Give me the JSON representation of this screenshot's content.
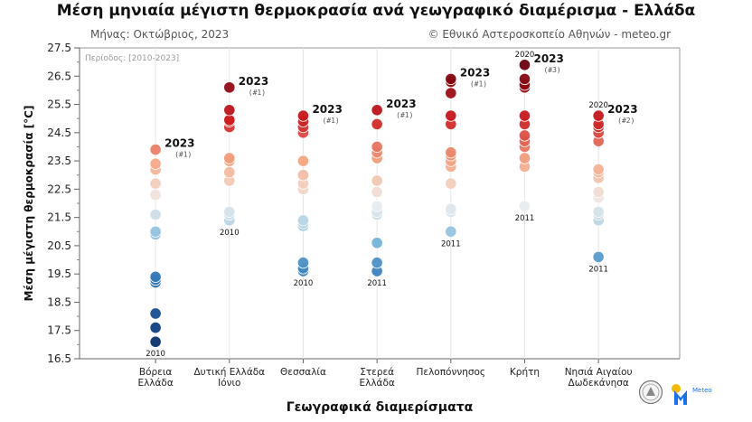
{
  "title": "Μέση μηνιαία μέγιστη θερμοκρασία ανά γεωγραφικό διαμέρισμα - Ελλάδα",
  "subtitle_left": "Μήνας: Οκτώβριος, 2023",
  "subtitle_right": "© Εθνικό Αστεροσκοπείο Αθηνών - meteo.gr",
  "logo_text": "Meteo",
  "chart_data": {
    "type": "scatter",
    "title": "Μέση μηνιαία μέγιστη θερμοκρασία ανά γεωγραφικό διαμέρισμα - Ελλάδα",
    "period_label": "Περίοδος: [2010-2023]",
    "xlabel": "Γεωγραφικά διαμερίσματα",
    "ylabel": "Μέση μέγιστη θερμοκρασία [°C]",
    "ylim": [
      16.5,
      27.5
    ],
    "yticks": [
      "16.5",
      "17.5",
      "18.5",
      "19.5",
      "20.5",
      "21.5",
      "22.5",
      "23.5",
      "24.5",
      "25.5",
      "26.5",
      "27.5"
    ],
    "grid": "vertical",
    "colors": {
      "cold": "#08306b",
      "warm": "#67000d"
    },
    "categories": [
      {
        "lines": [
          "Βόρεια",
          "Ελλάδα"
        ],
        "values": [
          17.1,
          17.6,
          18.1,
          19.2,
          19.3,
          19.4,
          20.9,
          21.0,
          21.6,
          22.3,
          22.7,
          23.2,
          23.4,
          23.9
        ],
        "max_label": "2023",
        "max_rank": "(#1)",
        "min_label": "2010",
        "top_label": ""
      },
      {
        "lines": [
          "Δυτική Ελλάδα",
          "Ιόνιο"
        ],
        "values": [
          21.4,
          21.6,
          21.7,
          22.8,
          23.1,
          23.5,
          23.6,
          24.7,
          24.9,
          24.95,
          25.3,
          26.1
        ],
        "max_label": "2023",
        "max_rank": "(#1)",
        "min_label": "2010",
        "top_label": ""
      },
      {
        "lines": [
          "Θεσσαλία"
        ],
        "values": [
          19.6,
          19.7,
          19.9,
          21.2,
          21.3,
          21.4,
          22.5,
          22.7,
          23.0,
          23.5,
          24.5,
          24.7,
          24.9,
          25.1
        ],
        "max_label": "2023",
        "max_rank": "(#1)",
        "min_label": "2010",
        "top_label": ""
      },
      {
        "lines": [
          "Στερεά",
          "Ελλάδα"
        ],
        "values": [
          19.6,
          19.9,
          20.6,
          21.6,
          21.7,
          21.9,
          22.4,
          22.8,
          23.6,
          23.8,
          24.0,
          24.8,
          25.3
        ],
        "max_label": "2023",
        "max_rank": "(#1)",
        "min_label": "2011",
        "top_label": ""
      },
      {
        "lines": [
          "Πελοπόννησος"
        ],
        "values": [
          21.0,
          21.7,
          21.8,
          22.7,
          23.3,
          23.5,
          23.7,
          23.8,
          24.8,
          25.1,
          25.9,
          26.3,
          26.4
        ],
        "max_label": "2023",
        "max_rank": "(#1)",
        "min_label": "2011",
        "top_label": ""
      },
      {
        "lines": [
          "Κρήτη"
        ],
        "values": [
          21.9,
          23.3,
          23.6,
          24.0,
          24.2,
          24.4,
          24.8,
          25.1,
          26.1,
          26.2,
          26.4,
          26.9
        ],
        "max_label": "2023",
        "max_rank": "(#3)",
        "min_label": "2011",
        "top_label": "2020"
      },
      {
        "lines": [
          "Νησιά Αιγαίου",
          "Δωδεκάνησα"
        ],
        "values": [
          20.1,
          21.4,
          21.6,
          21.7,
          22.2,
          22.4,
          22.9,
          23.1,
          23.2,
          24.2,
          24.5,
          24.7,
          24.8,
          25.1
        ],
        "max_label": "2023",
        "max_rank": "(#2)",
        "min_label": "2011",
        "top_label": "2020"
      }
    ]
  }
}
